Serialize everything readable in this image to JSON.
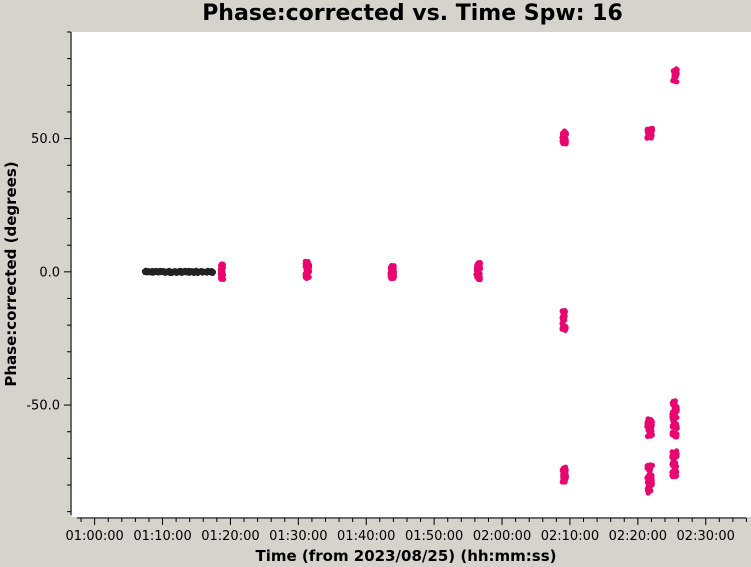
{
  "chart_data": {
    "type": "scatter",
    "title": "Phase:corrected vs. Time Spw: 16",
    "xlabel": "Time (from 2023/08/25) (hh:mm:ss)",
    "ylabel": "Phase:corrected (degrees)",
    "x_ticks": [
      "01:00:00",
      "01:10:00",
      "01:20:00",
      "01:30:00",
      "01:40:00",
      "01:50:00",
      "02:00:00",
      "02:10:00",
      "02:20:00",
      "02:30:00"
    ],
    "y_ticks": [
      50,
      0,
      -50
    ],
    "y_tick_labels": [
      "50.0",
      "0.0",
      "-50.0"
    ],
    "xlim": [
      "00:56:40",
      "02:36:40"
    ],
    "ylim": [
      -92,
      90
    ],
    "grid": false,
    "colors": {
      "calibrator": "#222222",
      "target": "#e8066f"
    },
    "series": [
      {
        "color_key": "calibrator",
        "points": [
          {
            "x_range": [
              "01:07:20",
              "01:17:30"
            ],
            "y": [
              -0.6,
              0.6
            ],
            "n": 160
          }
        ]
      },
      {
        "color_key": "target",
        "points": [
          {
            "x_range": [
              "01:18:30",
              "01:19:00"
            ],
            "y": [
              -3,
              3
            ],
            "n": 60
          },
          {
            "x_range": [
              "01:31:00",
              "01:31:40"
            ],
            "y": [
              -2.5,
              4
            ],
            "n": 60
          },
          {
            "x_range": [
              "01:43:30",
              "01:44:10"
            ],
            "y": [
              -2.5,
              2.5
            ],
            "n": 60
          },
          {
            "x_range": [
              "01:56:10",
              "01:56:50"
            ],
            "y": [
              -3,
              3.5
            ],
            "n": 60
          },
          {
            "x_range": [
              "02:08:50",
              "02:09:30"
            ],
            "y": [
              48,
              53
            ],
            "n": 40
          },
          {
            "x_range": [
              "02:08:50",
              "02:09:30"
            ],
            "y": [
              -22,
              -14
            ],
            "n": 35
          },
          {
            "x_range": [
              "02:08:50",
              "02:09:30"
            ],
            "y": [
              -79,
              -73
            ],
            "n": 35
          },
          {
            "x_range": [
              "02:21:20",
              "02:22:10"
            ],
            "y": [
              50,
              54
            ],
            "n": 25
          },
          {
            "x_range": [
              "02:21:20",
              "02:22:10"
            ],
            "y": [
              -62,
              -55
            ],
            "n": 40
          },
          {
            "x_range": [
              "02:21:20",
              "02:22:10"
            ],
            "y": [
              -83,
              -72
            ],
            "n": 45
          },
          {
            "x_range": [
              "02:25:00",
              "02:25:50"
            ],
            "y": [
              71,
              77
            ],
            "n": 18
          },
          {
            "x_range": [
              "02:25:00",
              "02:25:50"
            ],
            "y": [
              -62,
              -48
            ],
            "n": 45
          },
          {
            "x_range": [
              "02:25:00",
              "02:25:50"
            ],
            "y": [
              -77,
              -67
            ],
            "n": 45
          }
        ]
      }
    ]
  }
}
